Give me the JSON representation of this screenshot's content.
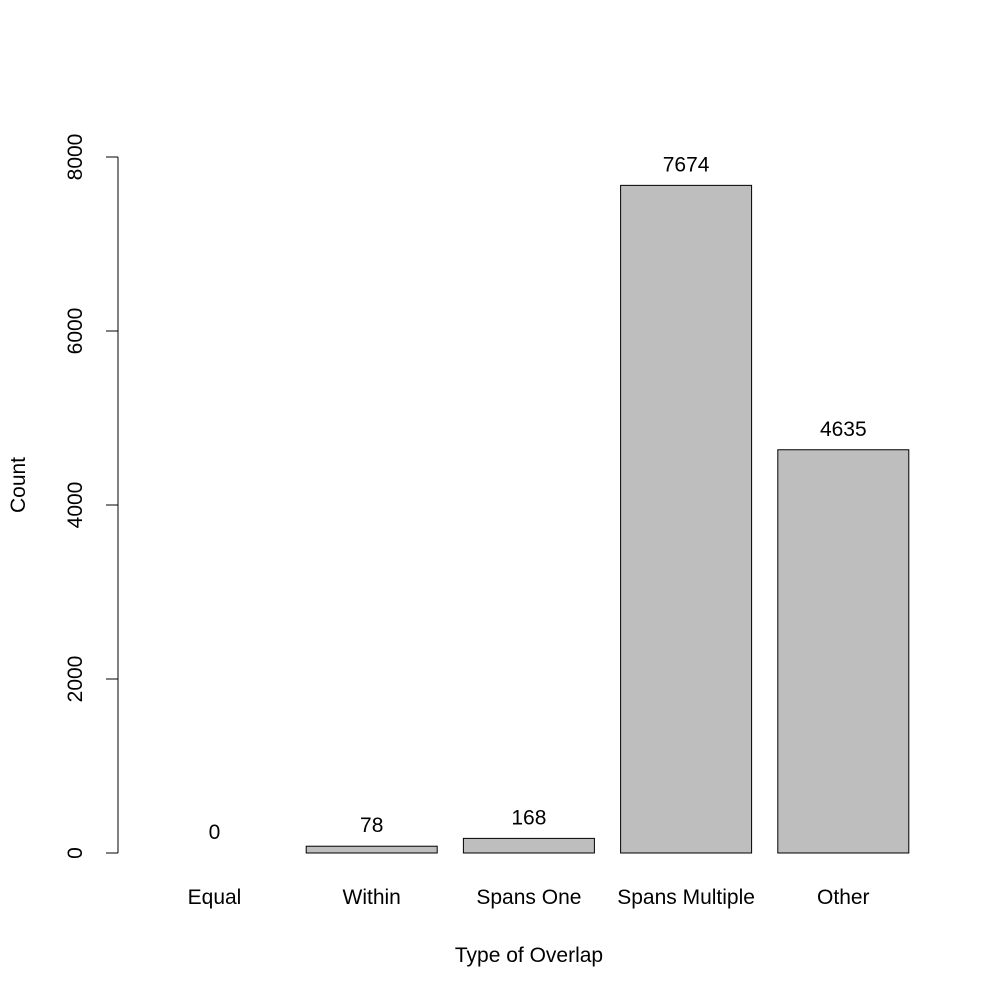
{
  "chart_data": {
    "type": "bar",
    "title": "",
    "xlabel": "Type of Overlap",
    "ylabel": "Count",
    "categories": [
      "Equal",
      "Within",
      "Spans One",
      "Spans Multiple",
      "Other"
    ],
    "values": [
      0,
      78,
      168,
      7674,
      4635
    ],
    "data_labels": [
      "0",
      "78",
      "168",
      "7674",
      "4635"
    ],
    "ylim": [
      0,
      8000
    ],
    "yticks": [
      0,
      2000,
      4000,
      6000,
      8000
    ],
    "ytick_labels": [
      "0",
      "2000",
      "4000",
      "6000",
      "8000"
    ],
    "grid": false,
    "legend": "none",
    "bar_color": "#bebebe",
    "edge_color": "#000000"
  }
}
